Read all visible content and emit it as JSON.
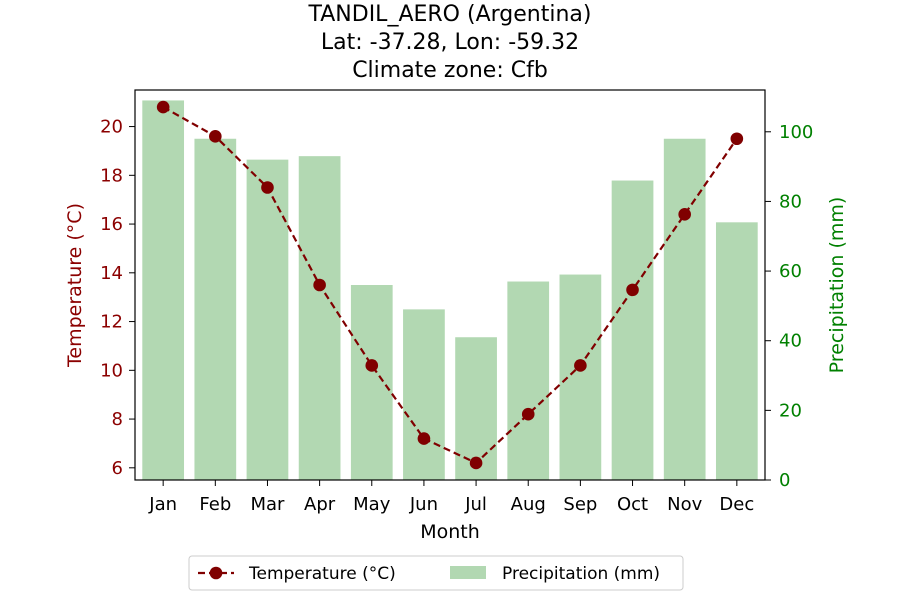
{
  "chart_data": {
    "type": "bar+line",
    "title": [
      "TANDIL_AERO (Argentina)",
      "Lat: -37.28, Lon: -59.32",
      "Climate zone: Cfb"
    ],
    "xlabel": "Month",
    "categories": [
      "Jan",
      "Feb",
      "Mar",
      "Apr",
      "May",
      "Jun",
      "Jul",
      "Aug",
      "Sep",
      "Oct",
      "Nov",
      "Dec"
    ],
    "series": [
      {
        "name": "Temperature (°C)",
        "type": "line",
        "axis": "left",
        "style": "dashed-with-markers",
        "values": [
          20.8,
          19.6,
          17.5,
          13.5,
          10.2,
          7.2,
          6.2,
          8.2,
          10.2,
          13.3,
          16.4,
          19.5
        ]
      },
      {
        "name": "Precipitation (mm)",
        "type": "bar",
        "axis": "right",
        "values": [
          109,
          98,
          92,
          93,
          56,
          49,
          41,
          57,
          59,
          86,
          98,
          74
        ]
      }
    ],
    "y_left": {
      "label": "Temperature (°C)",
      "lim": [
        5.5,
        21.5
      ],
      "ticks": [
        6,
        8,
        10,
        12,
        14,
        16,
        18,
        20
      ]
    },
    "y_right": {
      "label": "Precipitation (mm)",
      "lim": [
        0,
        112
      ],
      "ticks": [
        0,
        20,
        40,
        60,
        80,
        100
      ]
    },
    "grid": false,
    "legend_placement": "bottom-center",
    "colors": {
      "temperature": "#800000",
      "temperature_axis": "#8b0000",
      "precipitation": "#b2d8b2",
      "precipitation_axis": "#008000"
    }
  }
}
